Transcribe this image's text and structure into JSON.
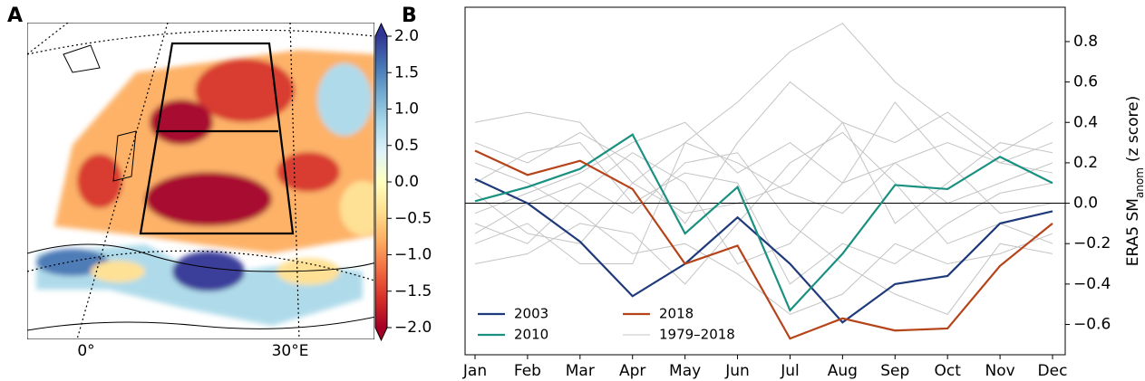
{
  "chart_data": [
    {
      "type": "map",
      "panel_label": "A",
      "xticks": [
        {
          "value": 0,
          "label": "0°"
        },
        {
          "value": 30,
          "label": "30°E"
        }
      ],
      "colorbar": {
        "clim": [
          -2,
          2
        ],
        "colors": [
          "#a50026",
          "#d73027",
          "#f46d43",
          "#fdae61",
          "#fee090",
          "#ffffbf",
          "#e0f3f8",
          "#abd9e9",
          "#74add1",
          "#4575b4",
          "#313695"
        ],
        "ticks": [
          {
            "value": 2.0,
            "label": "2.0"
          },
          {
            "value": 1.5,
            "label": "1.5"
          },
          {
            "value": 1.0,
            "label": "1.0"
          },
          {
            "value": 0.5,
            "label": "0.5"
          },
          {
            "value": 0.0,
            "label": "0.0"
          },
          {
            "value": -0.5,
            "label": "−0.5"
          },
          {
            "value": -1.0,
            "label": "−1.0"
          },
          {
            "value": -1.5,
            "label": "−1.5"
          },
          {
            "value": -2.0,
            "label": "−2.0"
          }
        ]
      }
    },
    {
      "type": "line",
      "panel_label": "B",
      "categories": [
        "Jan",
        "Feb",
        "Mar",
        "Apr",
        "May",
        "Jun",
        "Jul",
        "Aug",
        "Sep",
        "Oct",
        "Nov",
        "Dec"
      ],
      "ylabel": {
        "main": "ERA5 SM",
        "sub": "anom",
        "suffix": "(z score)"
      },
      "ylim": [
        -0.75,
        0.97
      ],
      "yticks": [
        {
          "value": -0.6,
          "label": "−0.6"
        },
        {
          "value": -0.4,
          "label": "−0.4"
        },
        {
          "value": -0.2,
          "label": "−0.2"
        },
        {
          "value": 0.0,
          "label": "0.0"
        },
        0.2,
        0.4,
        0.6,
        0.8
      ],
      "hline": 0,
      "series": [
        {
          "name": "2003",
          "color": "#1f3a7a",
          "values": [
            0.12,
            0.0,
            -0.19,
            -0.46,
            -0.3,
            -0.07,
            -0.3,
            -0.59,
            -0.4,
            -0.36,
            -0.1,
            -0.04
          ]
        },
        {
          "name": "2010",
          "color": "#1a9080",
          "values": [
            0.01,
            0.08,
            0.17,
            0.34,
            -0.15,
            0.08,
            -0.53,
            -0.25,
            0.09,
            0.07,
            0.23,
            0.1
          ]
        },
        {
          "name": "2018",
          "color": "#b5441a",
          "values": [
            0.26,
            0.14,
            0.21,
            0.07,
            -0.3,
            -0.21,
            -0.67,
            -0.57,
            -0.63,
            -0.62,
            -0.31,
            -0.1
          ]
        },
        {
          "name": "1979–2018",
          "color": "#c4c4c4",
          "lines": [
            [
              0.4,
              0.45,
              0.4,
              0.1,
              0.3,
              0.5,
              0.75,
              0.89,
              0.6,
              0.4,
              0.2,
              0.3
            ],
            [
              0.3,
              0.2,
              0.35,
              0.2,
              -0.1,
              0.3,
              0.6,
              0.4,
              0.3,
              0.45,
              0.25,
              0.4
            ],
            [
              -0.1,
              -0.2,
              0.05,
              0.25,
              0.1,
              -0.3,
              -0.2,
              0.1,
              0.2,
              0.0,
              0.1,
              0.2
            ],
            [
              -0.3,
              -0.25,
              -0.1,
              -0.15,
              -0.4,
              -0.1,
              0.2,
              0.35,
              0.1,
              -0.2,
              -0.1,
              -0.2
            ],
            [
              0.1,
              0.25,
              0.3,
              0.0,
              0.15,
              0.1,
              -0.4,
              -0.2,
              -0.3,
              -0.1,
              0.05,
              0.1
            ],
            [
              -0.2,
              -0.1,
              -0.3,
              -0.3,
              0.3,
              0.2,
              0.05,
              -0.05,
              0.2,
              0.3,
              0.2,
              0.15
            ],
            [
              0.2,
              0.1,
              -0.05,
              -0.25,
              -0.2,
              -0.35,
              -0.55,
              -0.45,
              -0.2,
              -0.3,
              -0.25,
              -0.15
            ],
            [
              -0.05,
              0.05,
              0.15,
              0.3,
              0.4,
              0.15,
              0.3,
              0.1,
              0.5,
              0.2,
              -0.05,
              0.0
            ],
            [
              0.05,
              -0.15,
              -0.2,
              0.1,
              -0.05,
              0.0,
              0.1,
              0.4,
              -0.1,
              0.1,
              0.3,
              0.25
            ],
            [
              -0.15,
              0.0,
              0.1,
              -0.05,
              0.2,
              0.25,
              -0.1,
              -0.3,
              -0.45,
              -0.55,
              -0.2,
              -0.25
            ]
          ]
        }
      ]
    }
  ]
}
